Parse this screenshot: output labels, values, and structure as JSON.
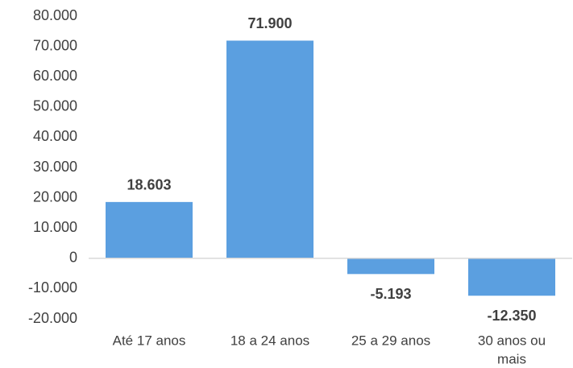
{
  "chart_data": {
    "type": "bar",
    "categories": [
      "Até 17 anos",
      "18 a 24 anos",
      "25 a 29 anos",
      "30 anos ou mais"
    ],
    "category_lines": [
      [
        "Até 17 anos"
      ],
      [
        "18 a 24 anos"
      ],
      [
        "25 a 29 anos"
      ],
      [
        "30 anos ou",
        "mais"
      ]
    ],
    "values": [
      18603,
      71900,
      -5193,
      -12350
    ],
    "data_labels": [
      "18.603",
      "71.900",
      "-5.193",
      "-12.350"
    ],
    "yticks": [
      80000,
      70000,
      60000,
      50000,
      40000,
      30000,
      20000,
      10000,
      0,
      -10000,
      -20000
    ],
    "ytick_labels": [
      "80.000",
      "70.000",
      "60.000",
      "50.000",
      "40.000",
      "30.000",
      "20.000",
      "10.000",
      "0",
      "-10.000",
      "-20.000"
    ],
    "ylim": [
      -20000,
      80000
    ],
    "title": "",
    "xlabel": "",
    "ylabel": "",
    "grid": false,
    "bar_color": "#5b9fe0"
  }
}
